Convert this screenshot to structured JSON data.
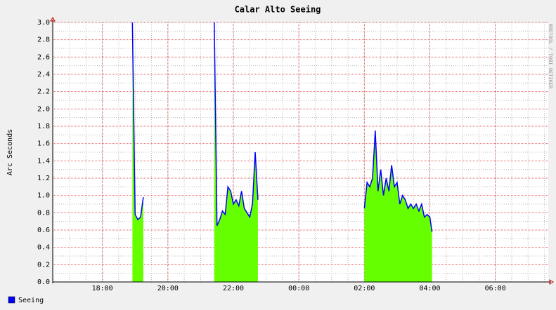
{
  "chart_data": {
    "type": "area",
    "title": "Calar Alto Seeing",
    "y_label": "Arc Seconds",
    "watermark": "RRDTOOL / TOBI OETIKER",
    "x": [
      "18:55",
      "19:00",
      "19:05",
      "19:10",
      "19:15",
      "19:20",
      "21:25",
      "21:30",
      "21:35",
      "21:40",
      "21:45",
      "21:50",
      "21:55",
      "22:00",
      "22:05",
      "22:10",
      "22:15",
      "22:20",
      "22:25",
      "22:30",
      "22:35",
      "22:40",
      "22:45",
      "22:50",
      "02:00",
      "02:05",
      "02:10",
      "02:15",
      "02:20",
      "02:25",
      "02:30",
      "02:35",
      "02:40",
      "02:45",
      "02:50",
      "02:55",
      "03:00",
      "03:05",
      "03:10",
      "03:15",
      "03:20",
      "03:25",
      "03:30",
      "03:35",
      "03:40",
      "03:45",
      "03:50",
      "03:55",
      "04:00",
      "04:04"
    ],
    "series": [
      {
        "name": "Seeing",
        "color": "#0000ff",
        "fill_color": "#66ff00",
        "values": [
          3.0,
          0.78,
          0.72,
          0.75,
          0.98,
          null,
          3.0,
          0.65,
          0.72,
          0.82,
          0.78,
          1.1,
          1.05,
          0.9,
          0.95,
          0.88,
          1.05,
          0.85,
          0.8,
          0.75,
          0.9,
          1.5,
          0.95,
          null,
          0.85,
          1.15,
          1.1,
          1.2,
          1.75,
          1.05,
          1.3,
          1.0,
          1.2,
          1.05,
          1.35,
          1.1,
          1.15,
          0.9,
          1.0,
          0.95,
          0.85,
          0.9,
          0.85,
          0.9,
          0.82,
          0.9,
          0.75,
          0.78,
          0.75,
          0.58
        ]
      }
    ],
    "xlim": [
      "16:29",
      "07:37"
    ],
    "xticks": [
      "18:00",
      "20:00",
      "22:00",
      "00:00",
      "02:00",
      "04:00",
      "06:00"
    ],
    "ylim": [
      0,
      3
    ],
    "yticks": [
      {
        "value": 0,
        "label": "0.0"
      },
      0.2,
      0.4,
      0.6,
      0.8,
      {
        "value": 1,
        "label": "1.0"
      },
      1.2,
      1.4,
      1.6,
      1.8,
      {
        "value": 2,
        "label": "2.0"
      },
      2.2,
      2.4,
      2.6,
      2.8,
      {
        "value": 3,
        "label": "3.0"
      }
    ],
    "grid": true
  }
}
